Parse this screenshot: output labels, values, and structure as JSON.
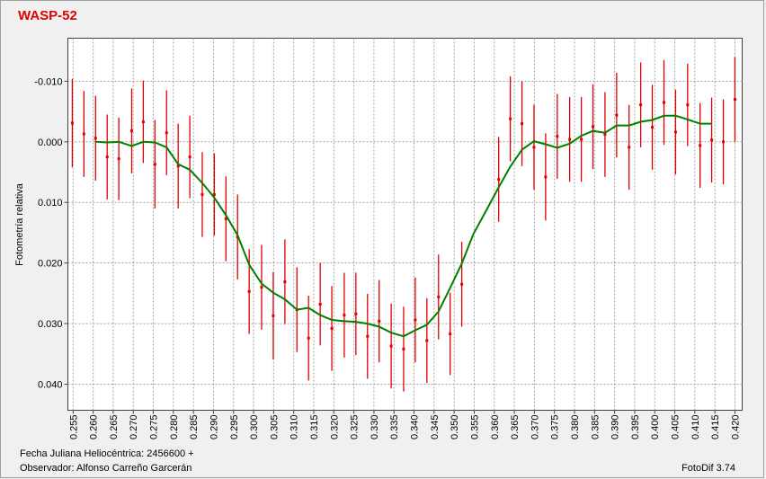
{
  "chart_data": {
    "type": "scatter",
    "title": "WASP-52",
    "y_label": "Fotometría relativa",
    "x_label": "Fecha Juliana Heliocéntrica: 2456600 +",
    "observer": "Observador: Alfonso Carreño Garcerán",
    "software": "FotoDif 3.74",
    "grid": true,
    "xlim": [
      0.2537,
      0.4218
    ],
    "ylim": [
      0.0443,
      -0.0171
    ],
    "yticks": [
      {
        "value": -0.01,
        "label": "-0.010"
      },
      {
        "value": 0,
        "label": "0.000"
      },
      {
        "value": 0.01,
        "label": "0.010"
      },
      {
        "value": 0.02,
        "label": "0.020"
      },
      {
        "value": 0.03,
        "label": "0.030"
      },
      {
        "value": 0.04,
        "label": "0.040"
      }
    ],
    "xticks": [
      {
        "value": 0.255,
        "label": "0.255"
      },
      {
        "value": 0.26,
        "label": "0.260"
      },
      {
        "value": 0.265,
        "label": "0.265"
      },
      {
        "value": 0.27,
        "label": "0.270"
      },
      {
        "value": 0.275,
        "label": "0.275"
      },
      {
        "value": 0.28,
        "label": "0.280"
      },
      {
        "value": 0.285,
        "label": "0.285"
      },
      {
        "value": 0.29,
        "label": "0.290"
      },
      {
        "value": 0.295,
        "label": "0.295"
      },
      {
        "value": 0.3,
        "label": "0.300"
      },
      {
        "value": 0.305,
        "label": "0.305"
      },
      {
        "value": 0.31,
        "label": "0.310"
      },
      {
        "value": 0.315,
        "label": "0.315"
      },
      {
        "value": 0.32,
        "label": "0.320"
      },
      {
        "value": 0.325,
        "label": "0.325"
      },
      {
        "value": 0.33,
        "label": "0.330"
      },
      {
        "value": 0.335,
        "label": "0.335"
      },
      {
        "value": 0.34,
        "label": "0.340"
      },
      {
        "value": 0.345,
        "label": "0.345"
      },
      {
        "value": 0.35,
        "label": "0.350"
      },
      {
        "value": 0.355,
        "label": "0.355"
      },
      {
        "value": 0.36,
        "label": "0.360"
      },
      {
        "value": 0.365,
        "label": "0.365"
      },
      {
        "value": 0.37,
        "label": "0.370"
      },
      {
        "value": 0.375,
        "label": "0.375"
      },
      {
        "value": 0.38,
        "label": "0.380"
      },
      {
        "value": 0.385,
        "label": "0.385"
      },
      {
        "value": 0.39,
        "label": "0.390"
      },
      {
        "value": 0.395,
        "label": "0.395"
      },
      {
        "value": 0.4,
        "label": "0.400"
      },
      {
        "value": 0.405,
        "label": "0.405"
      },
      {
        "value": 0.41,
        "label": "0.410"
      },
      {
        "value": 0.415,
        "label": "0.415"
      },
      {
        "value": 0.42,
        "label": "0.420"
      }
    ],
    "series": [
      {
        "type": "errorbar",
        "color": "#e00000",
        "x": [
          0.2548,
          0.2577,
          0.2606,
          0.2635,
          0.2664,
          0.2696,
          0.2725,
          0.2754,
          0.2783,
          0.2812,
          0.2841,
          0.2872,
          0.2902,
          0.2931,
          0.296,
          0.2989,
          0.302,
          0.3049,
          0.3078,
          0.3108,
          0.3137,
          0.3166,
          0.3195,
          0.3226,
          0.3255,
          0.3284,
          0.3313,
          0.3343,
          0.3374,
          0.3403,
          0.3432,
          0.3461,
          0.349,
          0.3519,
          0.3611,
          0.364,
          0.3669,
          0.3699,
          0.3728,
          0.3757,
          0.3788,
          0.3817,
          0.3846,
          0.3876,
          0.3905,
          0.3936,
          0.3965,
          0.3994,
          0.4023,
          0.4052,
          0.4082,
          0.4113,
          0.4142,
          0.4171,
          0.42
        ],
        "values": [
          -0.0031,
          -0.0013,
          -0.0006,
          0.0025,
          0.0028,
          -0.0018,
          -0.0033,
          0.0037,
          -0.0015,
          0.004,
          0.0025,
          0.0087,
          0.0087,
          0.0127,
          0.0157,
          0.0247,
          0.024,
          0.0287,
          0.0231,
          0.0277,
          0.0324,
          0.0268,
          0.0308,
          0.0286,
          0.0284,
          0.0321,
          0.0296,
          0.0337,
          0.0342,
          0.0294,
          0.0328,
          0.0256,
          0.0317,
          0.0235,
          0.0062,
          -0.0038,
          -0.003,
          0.0009,
          0.0058,
          -0.0009,
          -0.0004,
          -0.0004,
          -0.0025,
          -0.0012,
          -0.0044,
          0.0009,
          -0.0061,
          -0.0024,
          -0.0065,
          -0.0016,
          -0.0061,
          0.0006,
          -0.0003,
          0.0,
          -0.007
        ],
        "errors": [
          0.0073,
          0.0071,
          0.007,
          0.007,
          0.0068,
          0.007,
          0.0068,
          0.0073,
          0.007,
          0.007,
          0.0068,
          0.007,
          0.0068,
          0.007,
          0.007,
          0.007,
          0.007,
          0.0072,
          0.007,
          0.007,
          0.007,
          0.0068,
          0.007,
          0.007,
          0.0068,
          0.007,
          0.0068,
          0.007,
          0.007,
          0.007,
          0.007,
          0.007,
          0.0068,
          0.007,
          0.007,
          0.007,
          0.007,
          0.007,
          0.0072,
          0.007,
          0.007,
          0.007,
          0.007,
          0.007,
          0.007,
          0.007,
          0.007,
          0.007,
          0.007,
          0.007,
          0.0068,
          0.007,
          0.007,
          0.007,
          0.007
        ]
      },
      {
        "type": "line",
        "color": "#008000",
        "x": [
          0.2606,
          0.2635,
          0.2664,
          0.2696,
          0.2725,
          0.2754,
          0.2783,
          0.2812,
          0.2841,
          0.2872,
          0.2902,
          0.2931,
          0.296,
          0.2989,
          0.302,
          0.3049,
          0.3078,
          0.3108,
          0.3137,
          0.3166,
          0.3195,
          0.3226,
          0.3255,
          0.3284,
          0.3313,
          0.3343,
          0.3374,
          0.3403,
          0.3432,
          0.3461,
          0.349,
          0.3519,
          0.3548,
          0.3582,
          0.3611,
          0.364,
          0.3669,
          0.3699,
          0.3728,
          0.3757,
          0.3788,
          0.3817,
          0.3846,
          0.3876,
          0.3905,
          0.3936,
          0.3965,
          0.3994,
          0.4023,
          0.4052,
          0.4082,
          0.4113,
          0.4142
        ],
        "values": [
          0.0,
          0.0001,
          0.0,
          0.0007,
          0.0,
          0.0001,
          0.0009,
          0.0037,
          0.0046,
          0.0068,
          0.0092,
          0.0121,
          0.0154,
          0.0203,
          0.0234,
          0.0249,
          0.026,
          0.0277,
          0.0274,
          0.0286,
          0.0294,
          0.0296,
          0.0297,
          0.03,
          0.0305,
          0.0315,
          0.0321,
          0.0311,
          0.0302,
          0.028,
          0.0241,
          0.0201,
          0.0152,
          0.0111,
          0.0075,
          0.0041,
          0.0013,
          -0.0001,
          0.0004,
          0.001,
          0.0003,
          -0.001,
          -0.0018,
          -0.0015,
          -0.0027,
          -0.0027,
          -0.0033,
          -0.0036,
          -0.0043,
          -0.0043,
          -0.0037,
          -0.003,
          -0.003
        ]
      }
    ]
  }
}
